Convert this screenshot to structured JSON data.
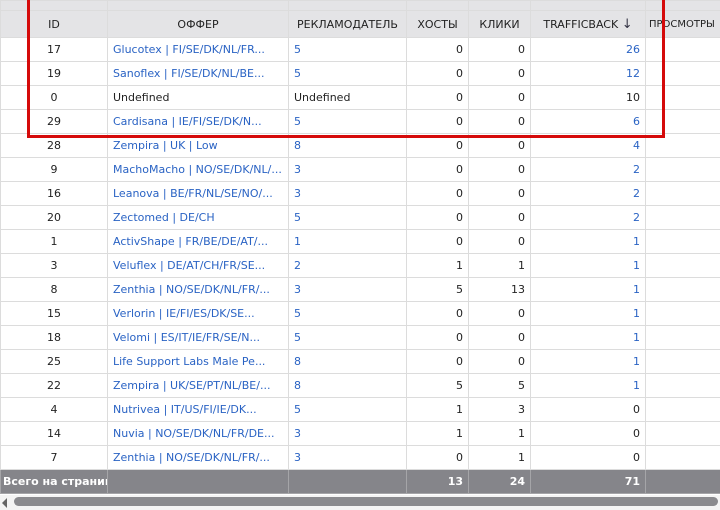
{
  "columns": {
    "id": "ID",
    "offer": "ОФФЕР",
    "advertiser": "РЕКЛАМОДАТЕЛЬ",
    "hosts": "ХОСТЫ",
    "clicks": "КЛИКИ",
    "trafficback": "TRAFFICBACK",
    "sort_icon": "↓",
    "views": "ПРОСМОТРЫ"
  },
  "rows": [
    {
      "id": "17",
      "offer": "Glucotex | FI/SE/DK/NL/FR...",
      "advertiser": "5",
      "hosts": "0",
      "clicks": "0",
      "trafficback": "26"
    },
    {
      "id": "19",
      "offer": "Sanoflex | FI/SE/DK/NL/BE...",
      "advertiser": "5",
      "hosts": "0",
      "clicks": "0",
      "trafficback": "12"
    },
    {
      "id": "0",
      "offer": "Undefined",
      "advertiser": "Undefined",
      "hosts": "0",
      "clicks": "0",
      "trafficback": "10"
    },
    {
      "id": "29",
      "offer": "Cardisana | IE/FI/SE/DK/N...",
      "advertiser": "5",
      "hosts": "0",
      "clicks": "0",
      "trafficback": "6"
    },
    {
      "id": "28",
      "offer": "Zempira | UK | Low",
      "advertiser": "8",
      "hosts": "0",
      "clicks": "0",
      "trafficback": "4"
    },
    {
      "id": "9",
      "offer": "MachoMacho | NO/SE/DK/NL/...",
      "advertiser": "3",
      "hosts": "0",
      "clicks": "0",
      "trafficback": "2"
    },
    {
      "id": "16",
      "offer": "Leanova | BE/FR/NL/SE/NO/...",
      "advertiser": "3",
      "hosts": "0",
      "clicks": "0",
      "trafficback": "2"
    },
    {
      "id": "20",
      "offer": "Zectomed | DE/CH",
      "advertiser": "5",
      "hosts": "0",
      "clicks": "0",
      "trafficback": "2"
    },
    {
      "id": "1",
      "offer": "ActivShape | FR/BE/DE/AT/...",
      "advertiser": "1",
      "hosts": "0",
      "clicks": "0",
      "trafficback": "1"
    },
    {
      "id": "3",
      "offer": "Veluflex | DE/AT/CH/FR/SE...",
      "advertiser": "2",
      "hosts": "1",
      "clicks": "1",
      "trafficback": "1"
    },
    {
      "id": "8",
      "offer": "Zenthia | NO/SE/DK/NL/FR/...",
      "advertiser": "3",
      "hosts": "5",
      "clicks": "13",
      "trafficback": "1"
    },
    {
      "id": "15",
      "offer": "Verlorin | IE/FI/ES/DK/SE...",
      "advertiser": "5",
      "hosts": "0",
      "clicks": "0",
      "trafficback": "1"
    },
    {
      "id": "18",
      "offer": "Velomi | ES/IT/IE/FR/SE/N...",
      "advertiser": "5",
      "hosts": "0",
      "clicks": "0",
      "trafficback": "1"
    },
    {
      "id": "25",
      "offer": "Life Support Labs Male Pe...",
      "advertiser": "8",
      "hosts": "0",
      "clicks": "0",
      "trafficback": "1"
    },
    {
      "id": "22",
      "offer": "Zempira | UK/SE/PT/NL/BE/...",
      "advertiser": "8",
      "hosts": "5",
      "clicks": "5",
      "trafficback": "1"
    },
    {
      "id": "4",
      "offer": "Nutrivea | IT/US/FI/IE/DK...",
      "advertiser": "5",
      "hosts": "1",
      "clicks": "3",
      "trafficback": "0"
    },
    {
      "id": "14",
      "offer": "Nuvia | NO/SE/DK/NL/FR/DE...",
      "advertiser": "3",
      "hosts": "1",
      "clicks": "1",
      "trafficback": "0"
    },
    {
      "id": "7",
      "offer": "Zenthia | NO/SE/DK/NL/FR/...",
      "advertiser": "3",
      "hosts": "0",
      "clicks": "1",
      "trafficback": "0"
    }
  ],
  "footer": {
    "label": "Всего на странице",
    "hosts": "13",
    "clicks": "24",
    "trafficback": "71"
  },
  "colors": {
    "link": "#2a63c4",
    "highlight": "#d50a0a",
    "footer_bg": "#85858a",
    "header_bg": "#e4e4e6"
  }
}
